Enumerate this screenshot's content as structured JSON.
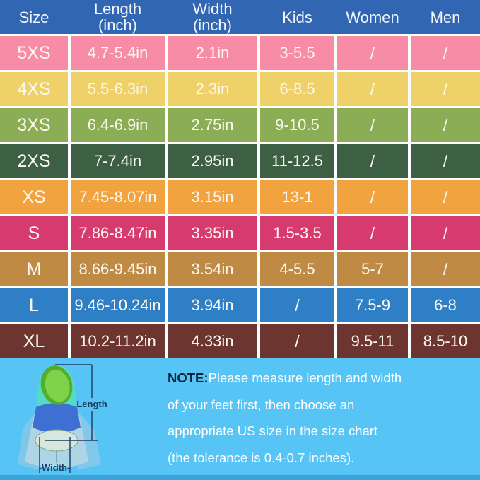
{
  "colors": {
    "header_bg": "#3166b2",
    "cell_text": "#fdf8ef",
    "footer_bg": "#57c4f6",
    "footer_strip": "#3aa3da",
    "note_label_color": "#0d2440",
    "measure_line_color": "#1d3a63"
  },
  "table": {
    "columns": [
      {
        "label": "Size",
        "sub": ""
      },
      {
        "label": "Length",
        "sub": "(inch)"
      },
      {
        "label": "Width",
        "sub": "(inch)"
      },
      {
        "label": "Kids",
        "sub": ""
      },
      {
        "label": "Women",
        "sub": ""
      },
      {
        "label": "Men",
        "sub": ""
      }
    ],
    "rows": [
      {
        "size": "5XS",
        "length": "4.7-5.4in",
        "width": "2.1in",
        "kids": "3-5.5",
        "women": "/",
        "men": "/",
        "color": "#f78ca6"
      },
      {
        "size": "4XS",
        "length": "5.5-6.3in",
        "width": "2.3in",
        "kids": "6-8.5",
        "women": "/",
        "men": "/",
        "color": "#eed269"
      },
      {
        "size": "3XS",
        "length": "6.4-6.9in",
        "width": "2.75in",
        "kids": "9-10.5",
        "women": "/",
        "men": "/",
        "color": "#8bad55"
      },
      {
        "size": "2XS",
        "length": "7-7.4in",
        "width": "2.95in",
        "kids": "11-12.5",
        "women": "/",
        "men": "/",
        "color": "#3d6045"
      },
      {
        "size": "XS",
        "length": "7.45-8.07in",
        "width": "3.15in",
        "kids": "13-1",
        "women": "/",
        "men": "/",
        "color": "#f1a33f"
      },
      {
        "size": "S",
        "length": "7.86-8.47in",
        "width": "3.35in",
        "kids": "1.5-3.5",
        "women": "/",
        "men": "/",
        "color": "#d63a6e"
      },
      {
        "size": "M",
        "length": "8.66-9.45in",
        "width": "3.54in",
        "kids": "4-5.5",
        "women": "5-7",
        "men": "/",
        "color": "#bf8a43"
      },
      {
        "size": "L",
        "length": "9.46-10.24in",
        "width": "3.94in",
        "kids": "/",
        "women": "7.5-9",
        "men": "6-8",
        "color": "#2e7fc6"
      },
      {
        "size": "XL",
        "length": "10.2-11.2in",
        "width": "4.33in",
        "kids": "/",
        "women": "9.5-11",
        "men": "8.5-10",
        "color": "#6d3530"
      }
    ]
  },
  "note": {
    "label": "NOTE:",
    "lines": [
      "Please measure length and width",
      "of your feet first, then choose an",
      "appropriate US size in the size chart",
      "(the tolerance is 0.4-0.7 inches)."
    ]
  },
  "diagram": {
    "length_label": "Length",
    "width_label": "-Width-"
  }
}
